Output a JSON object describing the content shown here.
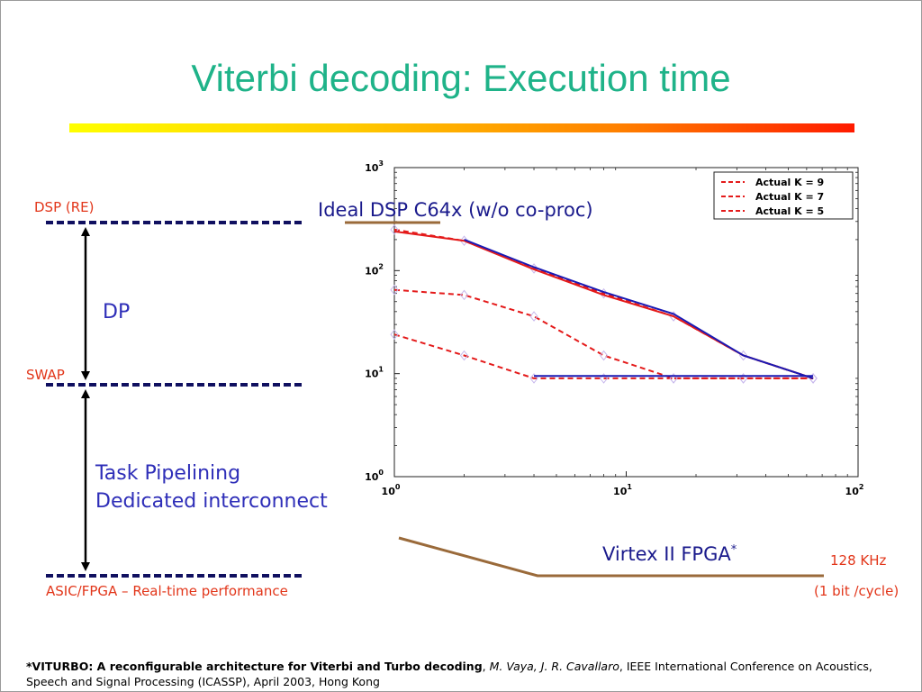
{
  "slide": {
    "title": "Viterbi decoding: Execution time",
    "levels": {
      "dsp_re": "DSP (RE)",
      "swap": "SWAP",
      "asic": "ASIC/FPGA – Real-time performance"
    },
    "dp_label": "DP",
    "pipeline_labels": [
      "Task Pipelining",
      "Dedicated interconnect"
    ],
    "ideal_dsp_label": "Ideal DSP C64x (w/o co-proc)",
    "virtex_label": "Virtex II FPGA",
    "virtex_star": "*",
    "rate_label": "128 KHz",
    "rate_sub_label": "(1 bit /cycle)",
    "footnote": {
      "bold": "*VITURBO: A reconfigurable architecture for Viterbi and Turbo decoding",
      "sep1": ", ",
      "authors": "M. Vaya, J. R. Cavallaro",
      "rest": ", IEEE International Conference on Acoustics, Speech and Signal Processing (ICASSP), April 2003, Hong Kong"
    }
  },
  "colors": {
    "title": "#1fb389",
    "red": "#e2361a",
    "blue_text": "#2e2eb8",
    "navy": "#1a1a8c",
    "series_red": "#e41a1a",
    "series_blue": "#1a1ab4",
    "bracket_brown": "#9a6a3a"
  },
  "chart_data": {
    "type": "line",
    "xscale": "log",
    "yscale": "log",
    "xlim": [
      1,
      100
    ],
    "ylim": [
      1,
      1000
    ],
    "x_ticks": [
      {
        "base": "10",
        "exp": "0",
        "value": 1
      },
      {
        "base": "10",
        "exp": "1",
        "value": 10
      },
      {
        "base": "10",
        "exp": "2",
        "value": 100
      }
    ],
    "y_ticks": [
      {
        "base": "10",
        "exp": "0",
        "value": 1
      },
      {
        "base": "10",
        "exp": "1",
        "value": 10
      },
      {
        "base": "10",
        "exp": "2",
        "value": 100
      },
      {
        "base": "10",
        "exp": "3",
        "value": 1000
      }
    ],
    "legend": {
      "placement": "top-right",
      "entries": [
        "Actual K = 9",
        "Actual K = 7",
        "Actual K = 5"
      ]
    },
    "series": [
      {
        "name": "Actual K = 9",
        "style": "dashed",
        "color": "#e41a1a",
        "markers": true,
        "x": [
          1,
          2,
          4,
          8,
          16,
          32,
          64
        ],
        "y": [
          250,
          195,
          105,
          60,
          36,
          15,
          9
        ]
      },
      {
        "name": "Actual K = 7",
        "style": "dashed",
        "color": "#e41a1a",
        "markers": true,
        "x": [
          1,
          2,
          4,
          8,
          16,
          32,
          64
        ],
        "y": [
          65,
          58,
          36,
          15,
          9,
          9,
          9
        ]
      },
      {
        "name": "Actual K = 5",
        "style": "dashed",
        "color": "#e41a1a",
        "markers": true,
        "x": [
          1,
          2,
          4,
          8,
          16,
          32,
          64
        ],
        "y": [
          24,
          15,
          9,
          9,
          9,
          9,
          9
        ]
      },
      {
        "style": "solid",
        "color": "#e41a1a",
        "x": [
          1,
          2,
          4,
          8,
          16,
          32,
          64
        ],
        "y": [
          240,
          195,
          103,
          58,
          36,
          15,
          9
        ]
      },
      {
        "style": "solid",
        "color": "#1a1ab4",
        "x": [
          2,
          4,
          8,
          16,
          32,
          64
        ],
        "y": [
          200,
          108,
          62,
          38,
          15,
          9
        ]
      },
      {
        "style": "solid",
        "color": "#1a1ab4",
        "x": [
          4,
          8,
          16,
          32,
          64
        ],
        "y": [
          9.5,
          9.5,
          9.5,
          9.5,
          9.5
        ]
      }
    ]
  }
}
